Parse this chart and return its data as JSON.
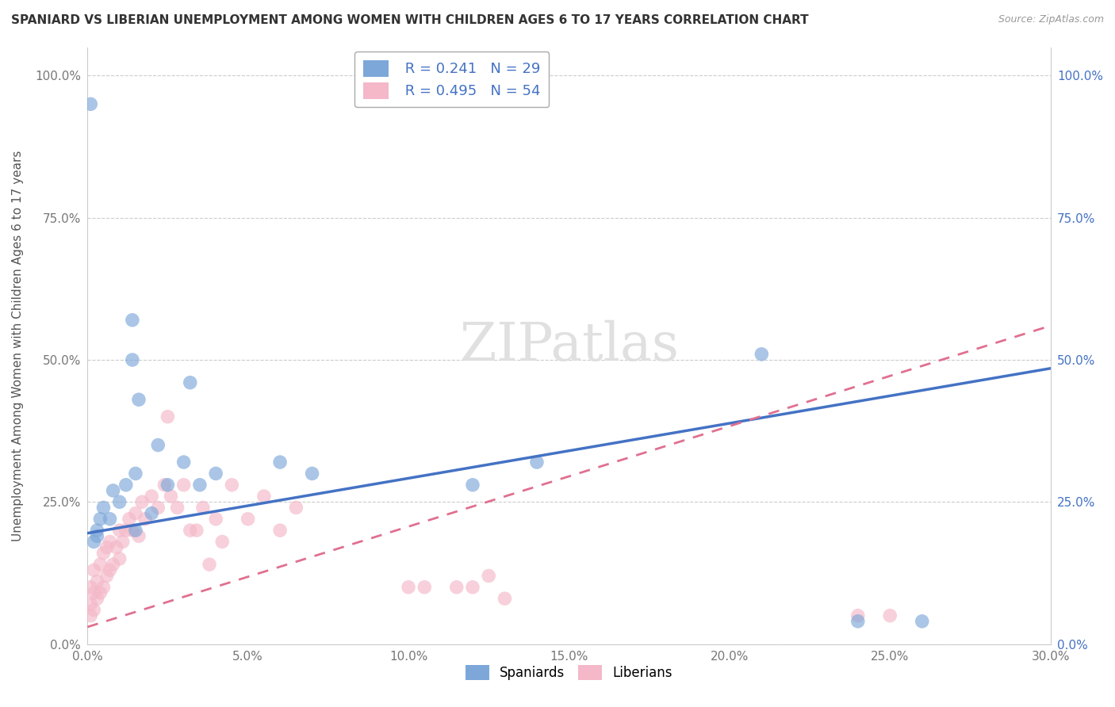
{
  "title": "SPANIARD VS LIBERIAN UNEMPLOYMENT AMONG WOMEN WITH CHILDREN AGES 6 TO 17 YEARS CORRELATION CHART",
  "source": "Source: ZipAtlas.com",
  "ylabel": "Unemployment Among Women with Children Ages 6 to 17 years",
  "xlim": [
    0.0,
    0.3
  ],
  "ylim": [
    0.0,
    1.05
  ],
  "xtick_labels": [
    "0.0%",
    "5.0%",
    "10.0%",
    "15.0%",
    "20.0%",
    "25.0%",
    "30.0%"
  ],
  "xtick_values": [
    0.0,
    0.05,
    0.1,
    0.15,
    0.2,
    0.25,
    0.3
  ],
  "ytick_labels": [
    "0.0%",
    "25.0%",
    "50.0%",
    "75.0%",
    "100.0%"
  ],
  "ytick_values": [
    0.0,
    0.25,
    0.5,
    0.75,
    1.0
  ],
  "spaniard_color": "#7da7d9",
  "liberian_color": "#f4b8c8",
  "spaniard_line_color": "#4472c4",
  "liberian_line_color": "#e07090",
  "R_spaniard": 0.241,
  "N_spaniard": 29,
  "R_liberian": 0.495,
  "N_liberian": 54,
  "legend_labels": [
    "Spaniards",
    "Liberians"
  ],
  "sp_line_x0": 0.0,
  "sp_line_y0": 0.195,
  "sp_line_x1": 0.3,
  "sp_line_y1": 0.485,
  "lib_line_x0": 0.0,
  "lib_line_y0": 0.03,
  "lib_line_x1": 0.3,
  "lib_line_y1": 0.56,
  "spaniard_x": [
    0.014,
    0.014,
    0.016,
    0.022,
    0.032,
    0.001,
    0.002,
    0.003,
    0.004,
    0.003,
    0.005,
    0.007,
    0.008,
    0.01,
    0.012,
    0.015,
    0.02,
    0.025,
    0.03,
    0.035,
    0.04,
    0.06,
    0.07,
    0.12,
    0.14,
    0.21,
    0.24,
    0.26,
    0.015
  ],
  "spaniard_y": [
    0.57,
    0.5,
    0.43,
    0.35,
    0.46,
    0.95,
    0.18,
    0.2,
    0.22,
    0.19,
    0.24,
    0.22,
    0.27,
    0.25,
    0.28,
    0.3,
    0.23,
    0.28,
    0.32,
    0.28,
    0.3,
    0.32,
    0.3,
    0.28,
    0.32,
    0.51,
    0.04,
    0.04,
    0.2
  ],
  "liberian_x": [
    0.001,
    0.001,
    0.001,
    0.002,
    0.002,
    0.002,
    0.003,
    0.003,
    0.004,
    0.004,
    0.005,
    0.005,
    0.006,
    0.006,
    0.007,
    0.007,
    0.008,
    0.009,
    0.01,
    0.01,
    0.011,
    0.012,
    0.013,
    0.014,
    0.015,
    0.016,
    0.017,
    0.018,
    0.02,
    0.022,
    0.024,
    0.025,
    0.026,
    0.028,
    0.03,
    0.032,
    0.034,
    0.036,
    0.038,
    0.04,
    0.042,
    0.045,
    0.05,
    0.055,
    0.06,
    0.065,
    0.1,
    0.105,
    0.115,
    0.12,
    0.125,
    0.13,
    0.24,
    0.25
  ],
  "liberian_y": [
    0.05,
    0.07,
    0.1,
    0.06,
    0.09,
    0.13,
    0.08,
    0.11,
    0.09,
    0.14,
    0.1,
    0.16,
    0.12,
    0.17,
    0.13,
    0.18,
    0.14,
    0.17,
    0.15,
    0.2,
    0.18,
    0.2,
    0.22,
    0.2,
    0.23,
    0.19,
    0.25,
    0.22,
    0.26,
    0.24,
    0.28,
    0.4,
    0.26,
    0.24,
    0.28,
    0.2,
    0.2,
    0.24,
    0.14,
    0.22,
    0.18,
    0.28,
    0.22,
    0.26,
    0.2,
    0.24,
    0.1,
    0.1,
    0.1,
    0.1,
    0.12,
    0.08,
    0.05,
    0.05
  ]
}
